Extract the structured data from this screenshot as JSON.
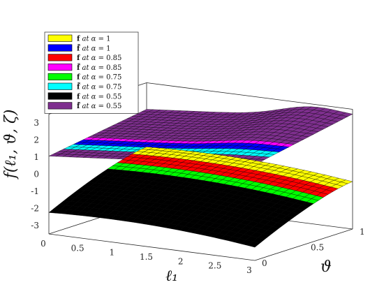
{
  "chart_data": {
    "type": "surface3d",
    "zlabel": "f(ℓ₁, ϑ, ζ)",
    "xlabel": "ℓ₁",
    "ylabel": "ϑ",
    "xlim": [
      0,
      3
    ],
    "ylim": [
      0,
      1
    ],
    "zlim": [
      -3.5,
      3.5
    ],
    "x_ticks": [
      "0",
      "0.5",
      "1",
      "1.5",
      "2",
      "2.5",
      "3"
    ],
    "y_ticks": [
      "0",
      "0.5",
      "1"
    ],
    "z_ticks": [
      "3",
      "2",
      "1",
      "0",
      "-1",
      "-2",
      "-3"
    ],
    "grid": false,
    "legend_position": "top-left",
    "series": [
      {
        "name": "f at α = 1",
        "fn": "f",
        "alpha": "1",
        "color": "#ffff00",
        "surface": "lower",
        "level": 0.0,
        "band_top": 1.0,
        "band_bot": 0.86
      },
      {
        "name": "f̃ at α = 1",
        "fn": "f~",
        "alpha": "1",
        "color": "#0000ff",
        "surface": "upper",
        "level": 2.1,
        "band_top": 0.34,
        "band_bot": 0.24
      },
      {
        "name": "f at α = 0.85",
        "fn": "f",
        "alpha": "0.85",
        "color": "#ff0000",
        "surface": "lower",
        "level": -0.2,
        "band_top": 0.86,
        "band_bot": 0.72
      },
      {
        "name": "f̃ at α = 0.85",
        "fn": "f~",
        "alpha": "0.85",
        "color": "#ff00ff",
        "surface": "upper",
        "level": 2.0,
        "band_top": 0.4,
        "band_bot": 0.34
      },
      {
        "name": "f at α = 0.75",
        "fn": "f",
        "alpha": "0.75",
        "color": "#00ff00",
        "surface": "lower",
        "level": -0.4,
        "band_top": 0.72,
        "band_bot": 0.58
      },
      {
        "name": "f̃ at α = 0.75",
        "fn": "f~",
        "alpha": "0.75",
        "color": "#00ffff",
        "surface": "upper",
        "level": 1.6,
        "band_top": 0.24,
        "band_bot": 0.14
      },
      {
        "name": "f at α = 0.55",
        "fn": "f",
        "alpha": "0.55",
        "color": "#000000",
        "surface": "lower",
        "level": -1.0,
        "band_top": 0.58,
        "band_bot": 0.12
      },
      {
        "name": "f̃ at α = 0.55",
        "fn": "f~",
        "alpha": "0.55",
        "color": "#7e2f8e",
        "surface": "upper",
        "level": 1.8,
        "band_top": 1.0,
        "band_bot": 0.4
      }
    ]
  }
}
